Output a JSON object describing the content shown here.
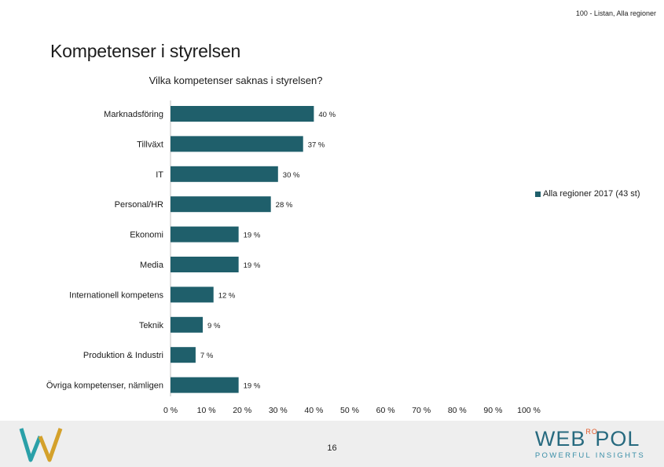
{
  "header": {
    "tag": "100 - Listan, Alla regioner",
    "title": "Kompetenser i styrelsen"
  },
  "chart_data": {
    "type": "bar",
    "orientation": "horizontal",
    "title": "Vilka kompetenser saknas i styrelsen?",
    "categories": [
      "Marknadsföring",
      "Tillväxt",
      "IT",
      "Personal/HR",
      "Ekonomi",
      "Media",
      "Internationell kompetens",
      "Teknik",
      "Produktion & Industri",
      "Övriga kompetenser, nämligen"
    ],
    "series": [
      {
        "name": "Alla regioner 2017 (43 st)",
        "values": [
          40,
          37,
          30,
          28,
          19,
          19,
          12,
          9,
          7,
          19
        ],
        "color": "#1f5f6b"
      }
    ],
    "value_labels": [
      "40 %",
      "37 %",
      "30 %",
      "28 %",
      "19 %",
      "19 %",
      "12 %",
      "9 %",
      "7 %",
      "19 %"
    ],
    "xticks": [
      "0 %",
      "10 %",
      "20 %",
      "30 %",
      "40 %",
      "50 %",
      "60 %",
      "70 %",
      "80 %",
      "90 %",
      "100 %"
    ],
    "xlim": [
      0,
      100
    ],
    "grid": false,
    "legend_position": "right"
  },
  "footer": {
    "page_number": "16",
    "brand": "WEBROPOL",
    "brand_left": "WEB",
    "brand_ro": "RO",
    "brand_right": "POL",
    "tagline": "POWERFUL INSIGHTS",
    "colors": {
      "brand": "#276a7f",
      "accent": "#e15a2b",
      "w_teal": "#2aa0a8",
      "w_gold": "#d4a12b"
    }
  }
}
